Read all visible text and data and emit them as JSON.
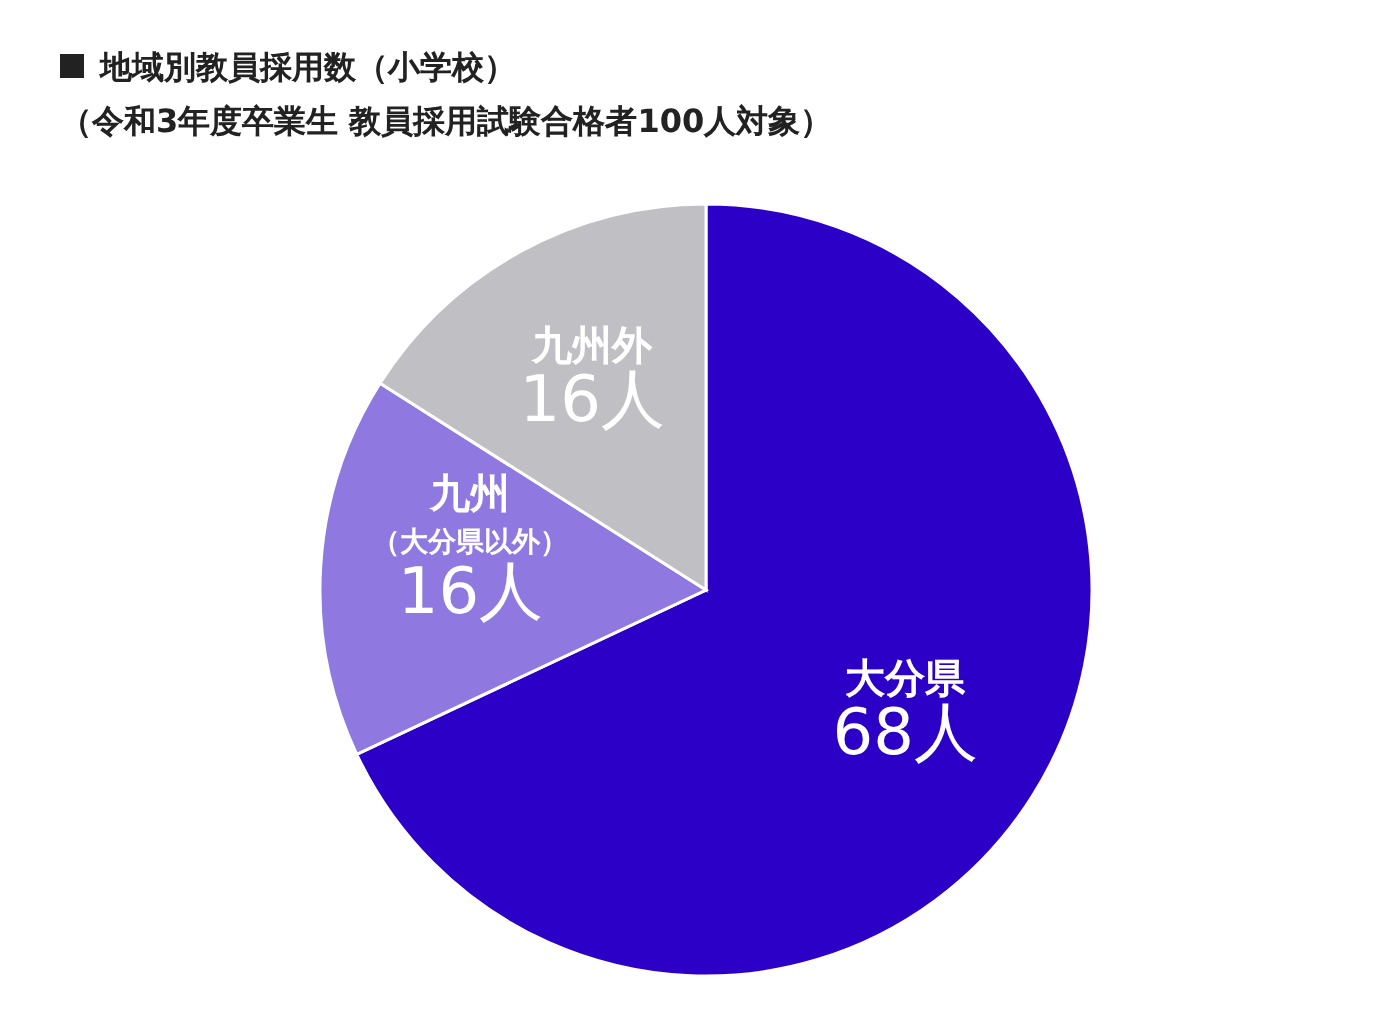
{
  "chart_data": {
    "type": "pie",
    "title": "地域別教員採用数（小学校）",
    "subtitle": "（令和3年度卒業生 教員採用試験合格者100人対象）",
    "categories": [
      "大分県",
      "九州（大分県以外）",
      "九州外"
    ],
    "values": [
      68,
      16,
      16
    ],
    "value_labels": [
      "68人",
      "16人",
      "16人"
    ],
    "colors": [
      "#2d00c8",
      "#8f78e0",
      "#c0c0c4"
    ]
  }
}
